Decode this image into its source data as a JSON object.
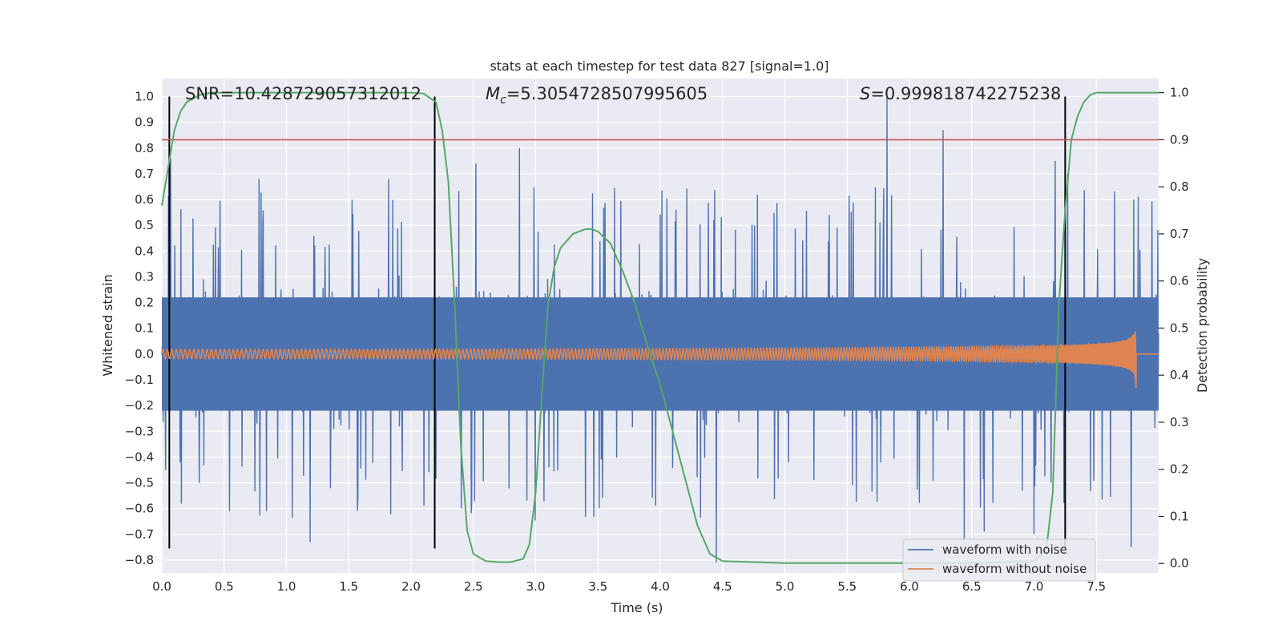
{
  "chart_data": {
    "type": "line",
    "title": "stats at each timestep for test data 827 [signal=1.0]",
    "xlabel": "Time (s)",
    "ylabel": "Whitened strain",
    "y2label": "Detection probability",
    "xlim": [
      0.0,
      8.0
    ],
    "ylim": [
      -0.85,
      1.07
    ],
    "y2lim": [
      -0.02,
      1.03
    ],
    "xticks": [
      "0.0",
      "0.5",
      "1.0",
      "1.5",
      "2.0",
      "2.5",
      "3.0",
      "3.5",
      "4.0",
      "4.5",
      "5.0",
      "5.5",
      "6.0",
      "6.5",
      "7.0",
      "7.5"
    ],
    "yticks": [
      "1.0",
      "0.9",
      "0.8",
      "0.7",
      "0.6",
      "0.5",
      "0.4",
      "0.3",
      "0.2",
      "0.1",
      "0.0",
      "−0.1",
      "−0.2",
      "−0.3",
      "−0.4",
      "−0.5",
      "−0.6",
      "−0.7",
      "−0.8"
    ],
    "y2ticks": [
      "0.0",
      "0.1",
      "0.2",
      "0.3",
      "0.4",
      "0.5",
      "0.6",
      "0.7",
      "0.8",
      "0.9",
      "1.0"
    ],
    "grid": true,
    "annotations": {
      "snr_label": "SNR=10.428729057312012",
      "mc_symbol": "M",
      "mc_subscript": "c",
      "mc_value": "=5.3054728507995605",
      "s_symbol": "S",
      "s_value": "=0.999818742275238"
    },
    "legend": {
      "placement": "lower-right"
    },
    "series": [
      {
        "name": "waveform with noise",
        "color": "#4c72b0",
        "kind": "noise",
        "x_range": [
          0.0,
          8.0
        ],
        "envelope_upper": 0.4,
        "envelope_lower": -0.4,
        "peaks": [
          {
            "x": 0.07,
            "y": 0.76
          },
          {
            "x": 0.78,
            "y": 0.68
          },
          {
            "x": 1.82,
            "y": 0.68
          },
          {
            "x": 2.52,
            "y": 0.74
          },
          {
            "x": 2.87,
            "y": 0.8
          },
          {
            "x": 5.82,
            "y": 1.0
          },
          {
            "x": 6.27,
            "y": 0.87
          },
          {
            "x": 7.17,
            "y": 0.75
          },
          {
            "x": 7.27,
            "y": 0.7
          },
          {
            "x": 7.8,
            "y": 0.6
          }
        ],
        "troughs": [
          {
            "x": 0.03,
            "y": -0.45
          },
          {
            "x": 1.19,
            "y": -0.73
          },
          {
            "x": 4.45,
            "y": -0.81
          },
          {
            "x": 6.44,
            "y": -0.72
          },
          {
            "x": 6.6,
            "y": -0.69
          },
          {
            "x": 7.0,
            "y": -0.7
          },
          {
            "x": 7.78,
            "y": -0.75
          }
        ]
      },
      {
        "name": "waveform without noise",
        "color": "#dd8452",
        "kind": "chirp",
        "x_range": [
          0.0,
          8.0
        ],
        "start_amplitude": 0.018,
        "end_amplitude": 0.21,
        "merger_time": 7.82
      },
      {
        "name": "detection probability",
        "color": "#55a868",
        "axis": "y2",
        "x": [
          0.0,
          0.05,
          0.1,
          0.15,
          0.2,
          0.3,
          0.4,
          0.5,
          1.0,
          1.5,
          2.0,
          2.1,
          2.2,
          2.25,
          2.3,
          2.35,
          2.4,
          2.45,
          2.5,
          2.6,
          2.7,
          2.8,
          2.9,
          2.95,
          3.0,
          3.05,
          3.1,
          3.15,
          3.2,
          3.3,
          3.4,
          3.45,
          3.5,
          3.6,
          3.7,
          3.8,
          3.9,
          4.0,
          4.1,
          4.2,
          4.3,
          4.4,
          4.5,
          5.0,
          5.5,
          6.0,
          6.5,
          7.0,
          7.1,
          7.15,
          7.2,
          7.25,
          7.3,
          7.35,
          7.4,
          7.45,
          7.5,
          7.6,
          7.7,
          7.8,
          8.0
        ],
        "y": [
          0.76,
          0.84,
          0.92,
          0.96,
          0.98,
          0.995,
          1.0,
          1.0,
          1.0,
          1.0,
          1.0,
          0.998,
          0.98,
          0.92,
          0.81,
          0.55,
          0.25,
          0.07,
          0.02,
          0.005,
          0.003,
          0.003,
          0.01,
          0.04,
          0.15,
          0.36,
          0.55,
          0.63,
          0.67,
          0.7,
          0.71,
          0.71,
          0.705,
          0.68,
          0.62,
          0.55,
          0.46,
          0.38,
          0.28,
          0.18,
          0.08,
          0.02,
          0.005,
          0.001,
          0.001,
          0.001,
          0.001,
          0.005,
          0.03,
          0.15,
          0.55,
          0.75,
          0.9,
          0.95,
          0.98,
          0.995,
          1.0,
          1.0,
          1.0,
          1.0,
          1.0
        ]
      }
    ],
    "reference_lines": {
      "threshold_y2": 0.9,
      "threshold_color": "#c44e52",
      "trigger_times": [
        0.06,
        2.19,
        7.25
      ]
    }
  }
}
